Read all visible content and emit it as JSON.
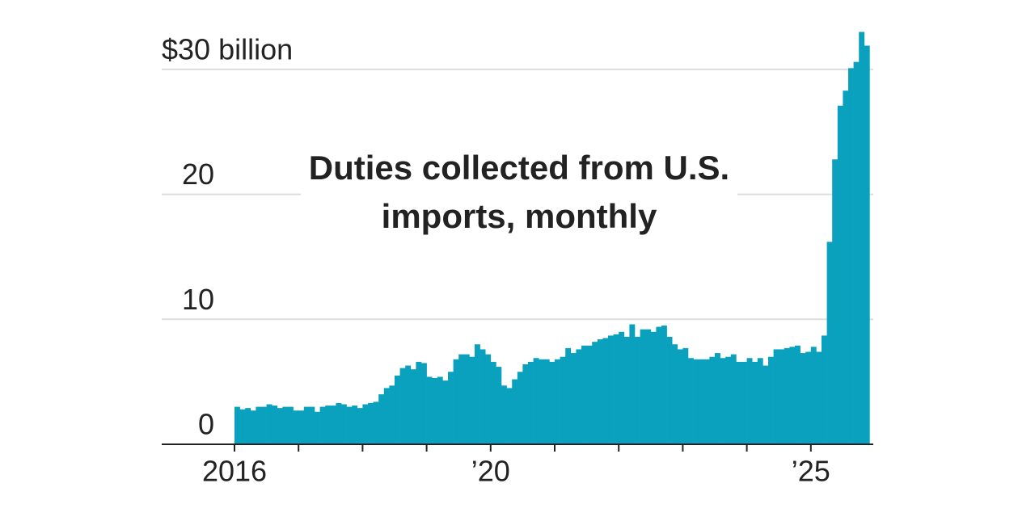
{
  "chart_data": {
    "type": "bar",
    "title": "Duties collected from U.S. imports, monthly",
    "color": "#0aa1bf",
    "grid": true,
    "ylim": [
      0,
      33
    ],
    "yticks": [
      0,
      10,
      20,
      {
        "value": 30,
        "label": "$30 billion"
      }
    ],
    "categories": [
      "2016",
      null,
      null,
      null,
      null,
      null,
      null,
      null,
      null,
      null,
      null,
      null,
      null,
      null,
      null,
      null,
      null,
      null,
      null,
      null,
      null,
      null,
      null,
      null,
      null,
      null,
      null,
      null,
      null,
      null,
      null,
      null,
      null,
      null,
      null,
      null,
      null,
      null,
      null,
      null,
      null,
      null,
      null,
      null,
      null,
      null,
      null,
      null,
      "’20",
      null,
      null,
      null,
      null,
      null,
      null,
      null,
      null,
      null,
      null,
      null,
      null,
      null,
      null,
      null,
      null,
      null,
      null,
      null,
      null,
      null,
      null,
      null,
      null,
      null,
      null,
      null,
      null,
      null,
      null,
      null,
      null,
      null,
      null,
      null,
      null,
      null,
      null,
      null,
      null,
      null,
      null,
      null,
      null,
      null,
      null,
      null,
      null,
      null,
      null,
      null,
      null,
      null,
      null,
      null,
      null,
      null,
      null,
      null,
      "’25",
      null,
      null,
      null,
      null,
      null,
      null,
      null,
      null,
      null,
      null
    ],
    "values": [
      3.0,
      2.8,
      2.9,
      2.7,
      3.0,
      3.0,
      3.2,
      3.1,
      2.9,
      3.0,
      3.0,
      2.7,
      2.7,
      3.0,
      3.0,
      2.6,
      3.0,
      3.1,
      3.1,
      3.3,
      3.2,
      3.0,
      3.1,
      2.9,
      3.2,
      3.3,
      3.4,
      4.0,
      4.5,
      4.7,
      5.5,
      6.1,
      6.3,
      6.0,
      6.6,
      6.5,
      5.4,
      5.3,
      5.4,
      5.1,
      5.8,
      6.8,
      7.2,
      7.2,
      7.0,
      8.0,
      7.6,
      7.2,
      6.6,
      6.2,
      4.7,
      4.5,
      5.2,
      5.8,
      6.4,
      6.6,
      6.9,
      6.8,
      6.8,
      6.6,
      6.8,
      7.0,
      7.7,
      7.3,
      7.6,
      7.9,
      7.9,
      8.2,
      8.4,
      8.5,
      8.7,
      8.8,
      9.0,
      8.6,
      9.6,
      8.6,
      9.2,
      9.2,
      9.0,
      9.4,
      9.5,
      8.6,
      8.0,
      7.6,
      7.7,
      6.9,
      6.8,
      6.8,
      6.8,
      7.0,
      7.3,
      6.9,
      7.0,
      7.2,
      6.6,
      6.6,
      6.9,
      6.6,
      6.9,
      6.3,
      7.0,
      7.6,
      7.6,
      7.7,
      7.8,
      7.9,
      7.3,
      7.4,
      7.8,
      7.4,
      8.7,
      16.2,
      22.8,
      27.1,
      28.3,
      30.1,
      30.6,
      33.0,
      31.9
    ]
  }
}
